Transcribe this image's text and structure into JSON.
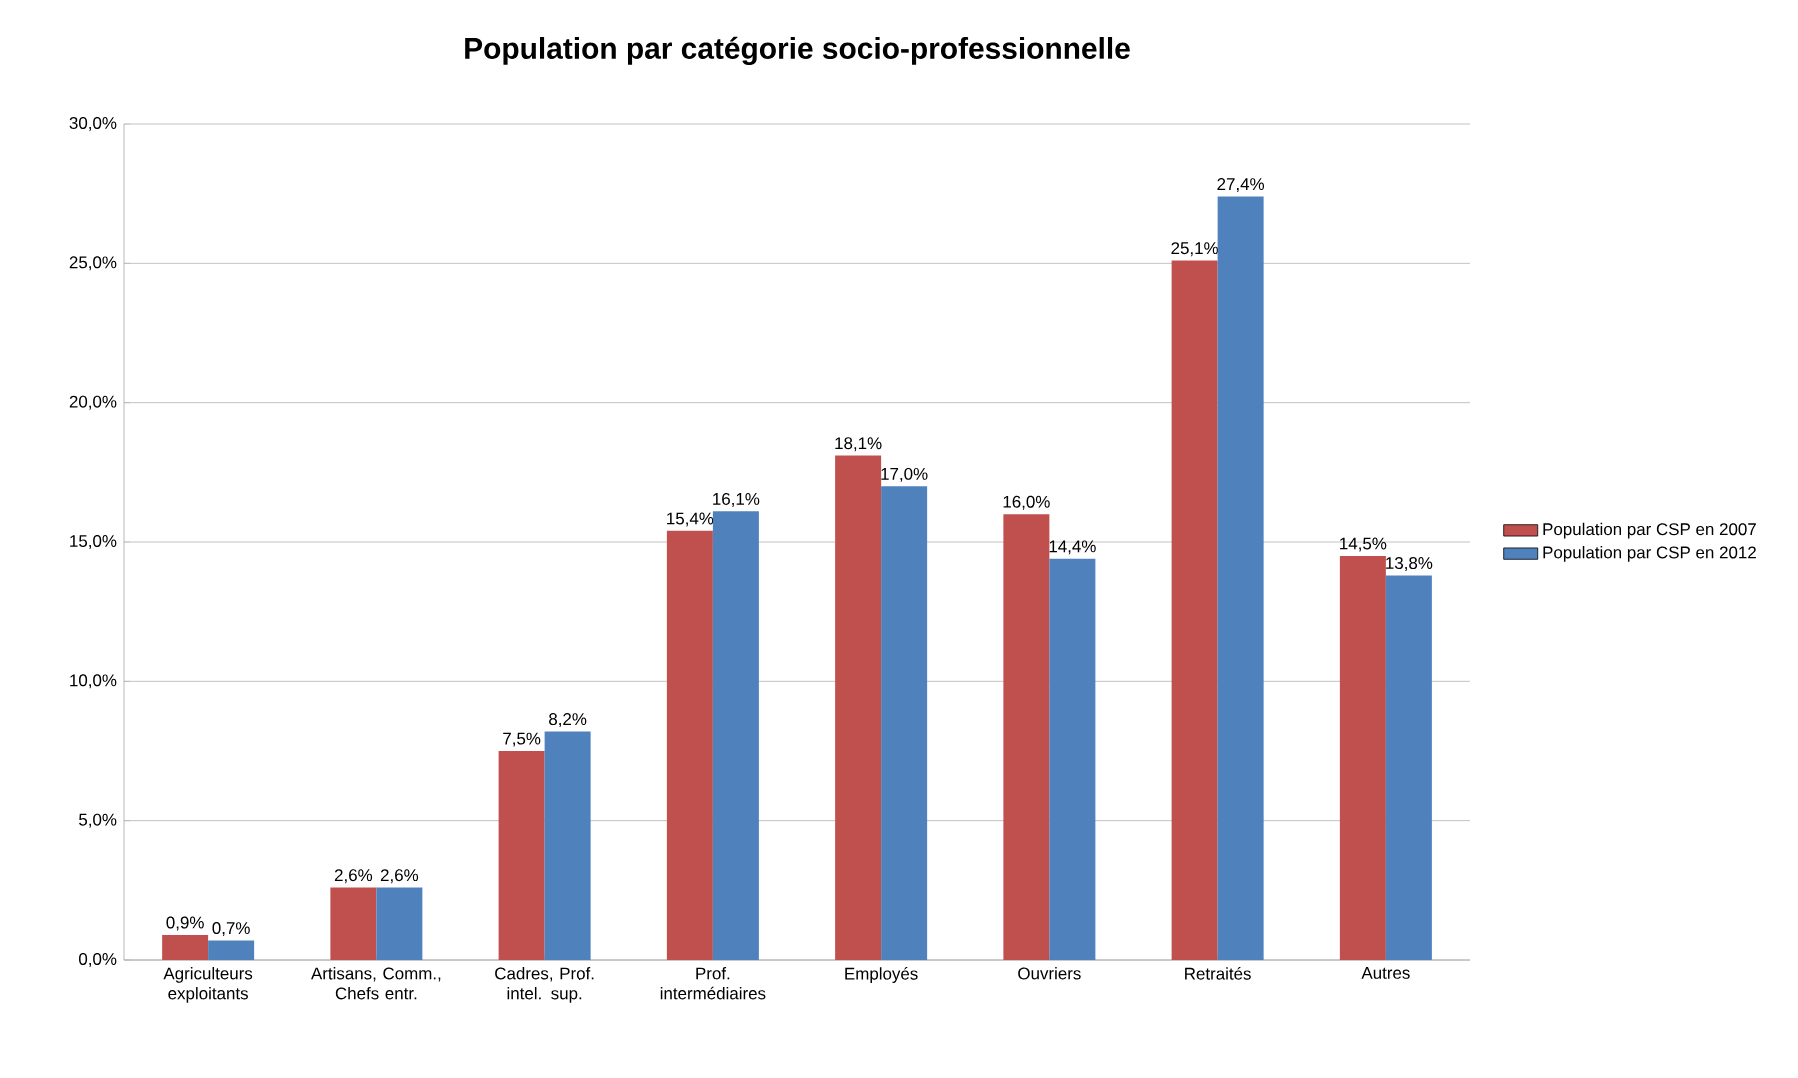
{
  "chart_data": {
    "type": "bar",
    "title": "Population par catégorie socio-professionnelle",
    "categories": [
      "Agriculteurs exploitants",
      "Artisans, Comm., Chefs entr.",
      "Cadres, Prof. intel. sup.",
      "Prof. intermédiaires",
      "Employés",
      "Ouvriers",
      "Retraités",
      "Autres"
    ],
    "series": [
      {
        "name": "Population par CSP en 2007",
        "color": "#c0504d",
        "values": [
          0.9,
          2.6,
          7.5,
          15.4,
          18.1,
          16.0,
          25.1,
          14.5
        ],
        "value_labels": [
          "0,9%",
          "2,6%",
          "7,5%",
          "15,4%",
          "18,1%",
          "16,0%",
          "25,1%",
          "14,5%"
        ]
      },
      {
        "name": "Population par CSP en 2012",
        "color": "#4f81bd",
        "values": [
          0.7,
          2.6,
          8.2,
          16.1,
          17.0,
          14.4,
          27.4,
          13.8
        ],
        "value_labels": [
          "0,7%",
          "2,6%",
          "8,2%",
          "16,1%",
          "17,0%",
          "14,4%",
          "27,4%",
          "13,8%"
        ]
      }
    ],
    "ylim": [
      0,
      30
    ],
    "yticks": [
      {
        "value": 0,
        "label": "0,0%"
      },
      {
        "value": 5,
        "label": "5,0%"
      },
      {
        "value": 10,
        "label": "10,0%"
      },
      {
        "value": 15,
        "label": "15,0%"
      },
      {
        "value": 20,
        "label": "20,0%"
      },
      {
        "value": 25,
        "label": "25,0%"
      },
      {
        "value": 30,
        "label": "30,0%"
      }
    ],
    "grid": "y",
    "legend": "right"
  }
}
